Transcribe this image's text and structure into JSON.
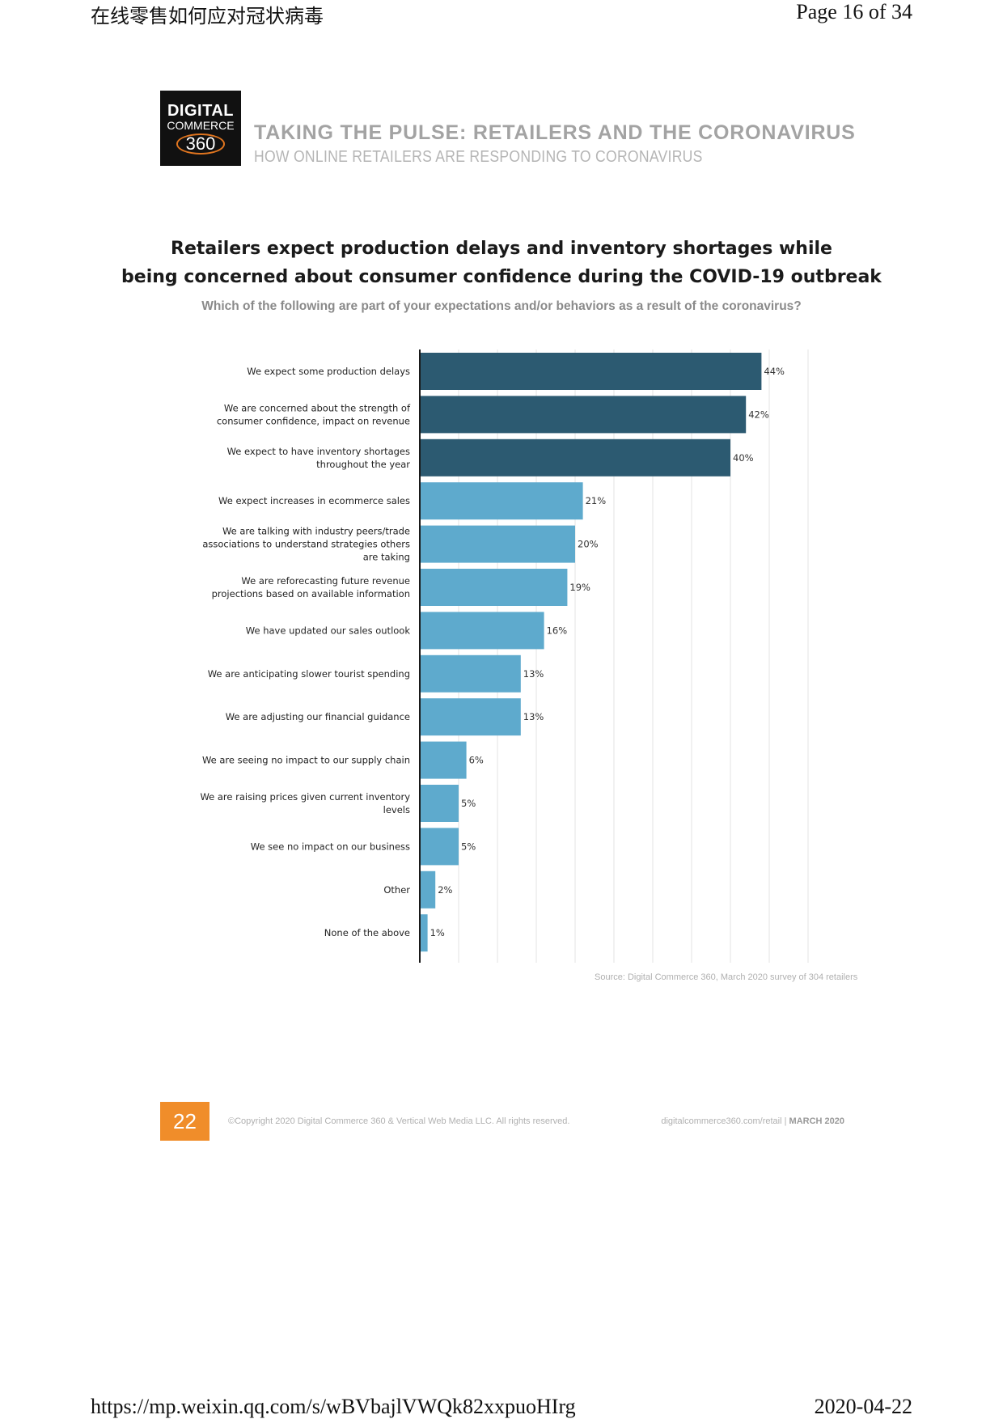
{
  "print_header": {
    "left": "在线零售如何应对冠状病毒",
    "right": "Page 16 of 34"
  },
  "print_footer": {
    "left": "https://mp.weixin.qq.com/s/wBVbajlVWQk82xxpuoHIrg",
    "right": "2020-04-22"
  },
  "logo": {
    "line1": "DIGITAL",
    "line2": "COMMERCE",
    "line3": "360"
  },
  "report": {
    "title": "TAKING THE PULSE: RETAILERS AND THE CORONAVIRUS",
    "subtitle": "HOW ONLINE RETAILERS ARE RESPONDING TO CORONAVIRUS"
  },
  "colors": {
    "dark_bar": "#2c5a71",
    "light_bar": "#5eaacd",
    "grid": "#e3e3e3",
    "axis": "#1a1a1a",
    "accent_orange": "#f08d2a"
  },
  "chart_data": {
    "type": "bar",
    "orientation": "horizontal",
    "title_line1": "Retailers expect production delays and inventory shortages while",
    "title_line2": "being concerned about consumer confidence during the COVID-19 outbreak",
    "subtitle": "Which of the following are part of your expectations and/or behaviors as a result of the coronavirus?",
    "xlim": [
      0,
      50
    ],
    "grid": true,
    "categories": [
      [
        "We expect some production delays"
      ],
      [
        "We are concerned about the strength of",
        "consumer confidence, impact on revenue"
      ],
      [
        "We expect to have inventory shortages",
        "throughout the year"
      ],
      [
        "We expect increases in ecommerce sales"
      ],
      [
        "We are talking with industry peers/trade",
        "associations to understand strategies others",
        "are taking"
      ],
      [
        "We are reforecasting future revenue",
        "projections based on available information"
      ],
      [
        "We have updated our sales outlook"
      ],
      [
        "We are anticipating slower tourist spending"
      ],
      [
        "We are adjusting our financial guidance"
      ],
      [
        "We are seeing no impact to our supply chain"
      ],
      [
        "We are raising prices given current inventory",
        "levels"
      ],
      [
        "We see no impact on our business"
      ],
      [
        "Other"
      ],
      [
        "None of the above"
      ]
    ],
    "values": [
      44,
      42,
      40,
      21,
      20,
      19,
      16,
      13,
      13,
      6,
      5,
      5,
      2,
      1
    ],
    "value_labels": [
      "44%",
      "42%",
      "40%",
      "21%",
      "20%",
      "19%",
      "16%",
      "13%",
      "13%",
      "6%",
      "5%",
      "5%",
      "2%",
      "1%"
    ],
    "highlighted_top": 3
  },
  "source": "Source: Digital Commerce 360, March 2020 survey of 304 retailers",
  "page_footer": {
    "page_number": "22",
    "copyright": "©Copyright 2020 Digital Commerce 360 & Vertical Web Media LLC. All rights reserved.",
    "site": "digitalcommerce360.com/retail",
    "date": "MARCH 2020"
  }
}
